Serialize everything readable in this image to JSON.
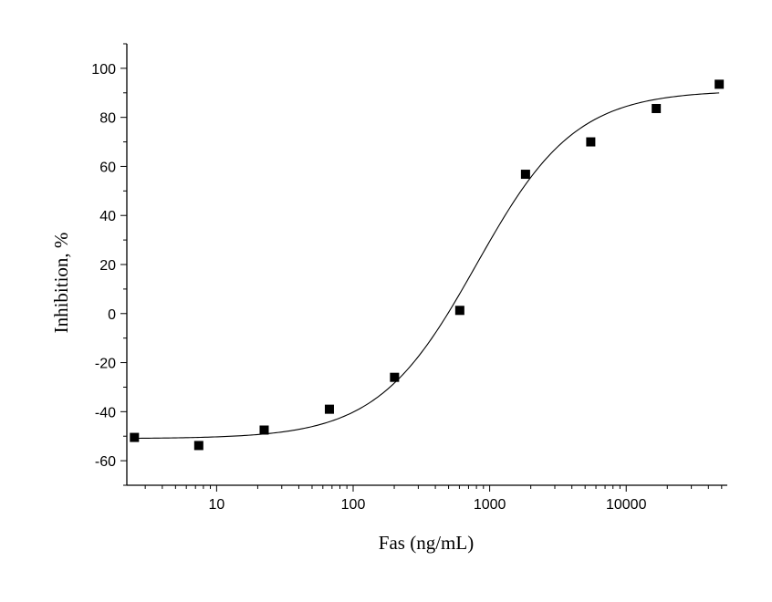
{
  "chart_data": {
    "type": "scatter",
    "xlabel": "Fas  (ng/mL)",
    "ylabel": "Inhibition, %",
    "x_scale": "log",
    "xlim": [
      2.2,
      55000
    ],
    "ylim": [
      -70,
      110
    ],
    "x_ticks": [
      {
        "value": 10,
        "label": "10"
      },
      {
        "value": 100,
        "label": "100"
      },
      {
        "value": 1000,
        "label": "1000"
      },
      {
        "value": 10000,
        "label": "10000"
      }
    ],
    "y_ticks": [
      {
        "value": -60,
        "label": "-60"
      },
      {
        "value": -40,
        "label": "-40"
      },
      {
        "value": -20,
        "label": "-20"
      },
      {
        "value": 0,
        "label": "0"
      },
      {
        "value": 20,
        "label": "20"
      },
      {
        "value": 40,
        "label": "40"
      },
      {
        "value": 60,
        "label": "60"
      },
      {
        "value": 80,
        "label": "80"
      },
      {
        "value": 100,
        "label": "100"
      }
    ],
    "grid": false,
    "points": [
      {
        "x": 2.5,
        "y": -50.5
      },
      {
        "x": 7.4,
        "y": -53.8
      },
      {
        "x": 22.3,
        "y": -47.5
      },
      {
        "x": 67,
        "y": -39
      },
      {
        "x": 201,
        "y": -26
      },
      {
        "x": 604,
        "y": 1.3
      },
      {
        "x": 1830,
        "y": 56.8
      },
      {
        "x": 5500,
        "y": 70
      },
      {
        "x": 16600,
        "y": 83.6
      },
      {
        "x": 48000,
        "y": 93.5
      }
    ],
    "fit_curve": {
      "type": "logistic",
      "bottom": -51,
      "top": 91,
      "ec50": 800,
      "hill": 1.2
    },
    "marker": "square",
    "color": "#000000"
  }
}
